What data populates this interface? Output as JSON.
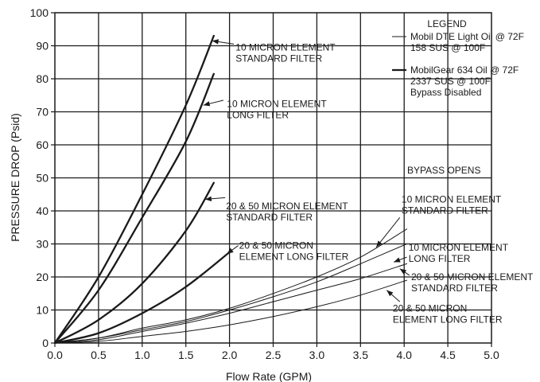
{
  "chart_data": {
    "type": "line",
    "title": "",
    "xlabel": "Flow Rate (GPM)",
    "ylabel": "PRESSURE DROP (Psid)",
    "xlim": [
      0,
      5
    ],
    "ylim": [
      0,
      100
    ],
    "grid": true,
    "x_ticks": [
      "0.0",
      "0.5",
      "1.0",
      "1.5",
      "2.0",
      "2.5",
      "3.0",
      "3.5",
      "4.0",
      "4.5",
      "5.0"
    ],
    "y_ticks": [
      "0",
      "10",
      "20",
      "30",
      "40",
      "50",
      "60",
      "70",
      "80",
      "90",
      "100"
    ],
    "legend": {
      "title": "LEGEND",
      "entries": [
        {
          "lines": [
            "Mobil DTE Light Oil @ 72F",
            "158 SUS @ 100F"
          ],
          "style": "thin"
        },
        {
          "lines": [
            "MobilGear 634 Oil @ 72F",
            "2337 SUS @ 100F",
            "Bypass Disabled"
          ],
          "style": "thick"
        }
      ]
    },
    "bypass_label": "BYPASS OPENS",
    "series": [
      {
        "group": "MobilGear 634",
        "style": "thick",
        "points": [
          [
            0,
            0
          ],
          [
            0.5,
            20
          ],
          [
            1.0,
            45
          ],
          [
            1.5,
            72
          ],
          [
            1.82,
            93
          ]
        ]
      },
      {
        "group": "MobilGear 634",
        "style": "thick",
        "points": [
          [
            0,
            0
          ],
          [
            0.5,
            16
          ],
          [
            1.0,
            38
          ],
          [
            1.5,
            61
          ],
          [
            1.82,
            81.5
          ]
        ]
      },
      {
        "group": "MobilGear 634",
        "style": "thick",
        "points": [
          [
            0,
            0
          ],
          [
            0.5,
            7
          ],
          [
            1.0,
            18
          ],
          [
            1.5,
            34
          ],
          [
            1.82,
            48.5
          ]
        ]
      },
      {
        "group": "MobilGear 634",
        "style": "thick",
        "points": [
          [
            0,
            0
          ],
          [
            0.5,
            3
          ],
          [
            1.0,
            9
          ],
          [
            1.5,
            17
          ],
          [
            2.0,
            27.5
          ]
        ]
      },
      {
        "group": "Mobil DTE Light",
        "style": "thin",
        "points": [
          [
            0,
            0
          ],
          [
            0.5,
            1.5
          ],
          [
            1.0,
            4.5
          ],
          [
            1.5,
            7
          ],
          [
            2.0,
            10.5
          ],
          [
            2.5,
            15
          ],
          [
            3.0,
            20
          ],
          [
            3.5,
            26
          ],
          [
            4.03,
            34.5
          ]
        ]
      },
      {
        "group": "Mobil DTE Light",
        "style": "thin",
        "points": [
          [
            0,
            0
          ],
          [
            0.5,
            1.5
          ],
          [
            1.0,
            4
          ],
          [
            1.5,
            6.5
          ],
          [
            2.0,
            10
          ],
          [
            2.5,
            14
          ],
          [
            3.0,
            18.5
          ],
          [
            3.5,
            24
          ],
          [
            4.03,
            30
          ]
        ]
      },
      {
        "group": "Mobil DTE Light",
        "style": "thin",
        "points": [
          [
            0,
            0
          ],
          [
            0.5,
            1
          ],
          [
            1.0,
            3.5
          ],
          [
            1.5,
            6
          ],
          [
            2.0,
            9
          ],
          [
            2.5,
            12.5
          ],
          [
            3.0,
            16
          ],
          [
            3.5,
            19.5
          ],
          [
            4.03,
            24
          ]
        ]
      },
      {
        "group": "Mobil DTE Light",
        "style": "thin",
        "points": [
          [
            0,
            0
          ],
          [
            0.5,
            0.5
          ],
          [
            1.0,
            2
          ],
          [
            1.5,
            3.5
          ],
          [
            2.0,
            5.5
          ],
          [
            2.5,
            8
          ],
          [
            3.0,
            11
          ],
          [
            3.5,
            14.5
          ],
          [
            4.03,
            19
          ]
        ]
      }
    ],
    "annotations": [
      {
        "lines": [
          "10 MICRON ELEMENT",
          "STANDARD FILTER"
        ],
        "text_at": [
          2.07,
          88.5
        ],
        "arrow_from": [
          2.05,
          90.5
        ],
        "arrow_to": [
          1.8,
          91.5
        ]
      },
      {
        "lines": [
          "10 MICRON ELEMENT",
          "LONG FILTER"
        ],
        "text_at": [
          1.97,
          71.5
        ],
        "arrow_from": [
          1.93,
          73.5
        ],
        "arrow_to": [
          1.7,
          72
        ]
      },
      {
        "lines": [
          "20 & 50 MICRON ELEMENT",
          "STANDARD FILTER"
        ],
        "text_at": [
          1.96,
          40.5
        ],
        "arrow_from": [
          1.95,
          44
        ],
        "arrow_to": [
          1.72,
          43.5
        ]
      },
      {
        "lines": [
          "20 & 50 MICRON",
          "ELEMENT LONG FILTER"
        ],
        "text_at": [
          2.11,
          28.5
        ],
        "arrow_from": [
          2.1,
          29.5
        ],
        "arrow_to": [
          1.97,
          27
        ]
      },
      {
        "lines": [
          "10 MICRON ELEMENT",
          "STANDARD FILTER"
        ],
        "text_at": [
          3.97,
          42.5
        ],
        "arrow_from": [
          3.95,
          38
        ],
        "arrow_to": [
          3.68,
          29
        ]
      },
      {
        "lines": [
          "10 MICRON ELEMENT",
          "LONG FILTER"
        ],
        "text_at": [
          4.05,
          28
        ],
        "arrow_from": [
          4.03,
          26
        ],
        "arrow_to": [
          3.88,
          24.5
        ]
      },
      {
        "lines": [
          "20 & 50 MICRON ELEMENT",
          "STANDARD FILTER"
        ],
        "text_at": [
          4.08,
          19
        ],
        "arrow_from": [
          4.06,
          20.5
        ],
        "arrow_to": [
          3.95,
          22.5
        ]
      },
      {
        "lines": [
          "20 & 50 MICRON",
          "ELEMENT LONG FILTER"
        ],
        "text_at": [
          3.87,
          9.5
        ],
        "arrow_from": [
          3.95,
          12.5
        ],
        "arrow_to": [
          3.8,
          16
        ]
      }
    ]
  }
}
